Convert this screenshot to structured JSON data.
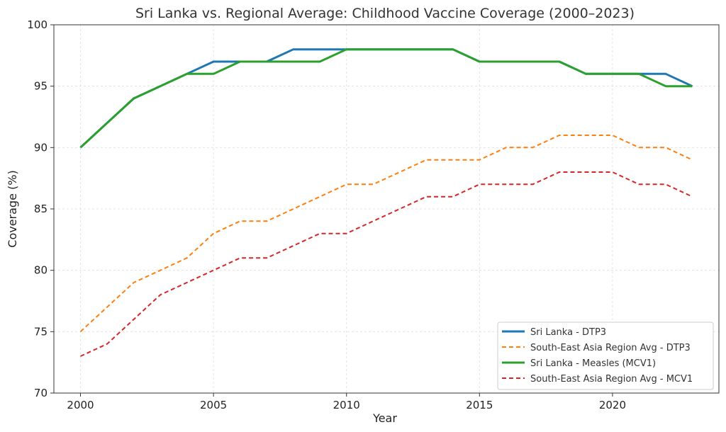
{
  "chart_data": {
    "type": "line",
    "title": "Sri Lanka vs. Regional Average: Childhood Vaccine Coverage (2000–2023)",
    "xlabel": "Year",
    "ylabel": "Coverage (%)",
    "xlim": [
      1999,
      2024
    ],
    "ylim": [
      70,
      100
    ],
    "xticks": [
      2000,
      2005,
      2010,
      2015,
      2020
    ],
    "yticks": [
      70,
      75,
      80,
      85,
      90,
      95,
      100
    ],
    "grid": true,
    "legend_position": "bottom-right",
    "x": [
      2000,
      2001,
      2002,
      2003,
      2004,
      2005,
      2006,
      2007,
      2008,
      2009,
      2010,
      2011,
      2012,
      2013,
      2014,
      2015,
      2016,
      2017,
      2018,
      2019,
      2020,
      2021,
      2022,
      2023
    ],
    "series": [
      {
        "name": "Sri Lanka - DTP3",
        "color": "#1f77b4",
        "style": "solid",
        "values": [
          90,
          92,
          94,
          95,
          96,
          97,
          97,
          97,
          98,
          98,
          98,
          98,
          98,
          98,
          98,
          97,
          97,
          97,
          97,
          96,
          96,
          96,
          96,
          95
        ]
      },
      {
        "name": "South-East Asia Region Avg - DTP3",
        "color": "#ff7f0e",
        "style": "dashed",
        "values": [
          75,
          77,
          79,
          80,
          81,
          83,
          84,
          84,
          85,
          86,
          87,
          87,
          88,
          89,
          89,
          89,
          90,
          90,
          91,
          91,
          91,
          90,
          90,
          89
        ]
      },
      {
        "name": "Sri Lanka - Measles (MCV1)",
        "color": "#2ca02c",
        "style": "solid",
        "values": [
          90,
          92,
          94,
          95,
          96,
          96,
          97,
          97,
          97,
          97,
          98,
          98,
          98,
          98,
          98,
          97,
          97,
          97,
          97,
          96,
          96,
          96,
          95,
          95
        ]
      },
      {
        "name": "South-East Asia Region Avg - MCV1",
        "color": "#d62728",
        "style": "dashed",
        "values": [
          73,
          74,
          76,
          78,
          79,
          80,
          81,
          81,
          82,
          83,
          83,
          84,
          85,
          86,
          86,
          87,
          87,
          87,
          88,
          88,
          88,
          87,
          87,
          86
        ]
      }
    ]
  }
}
